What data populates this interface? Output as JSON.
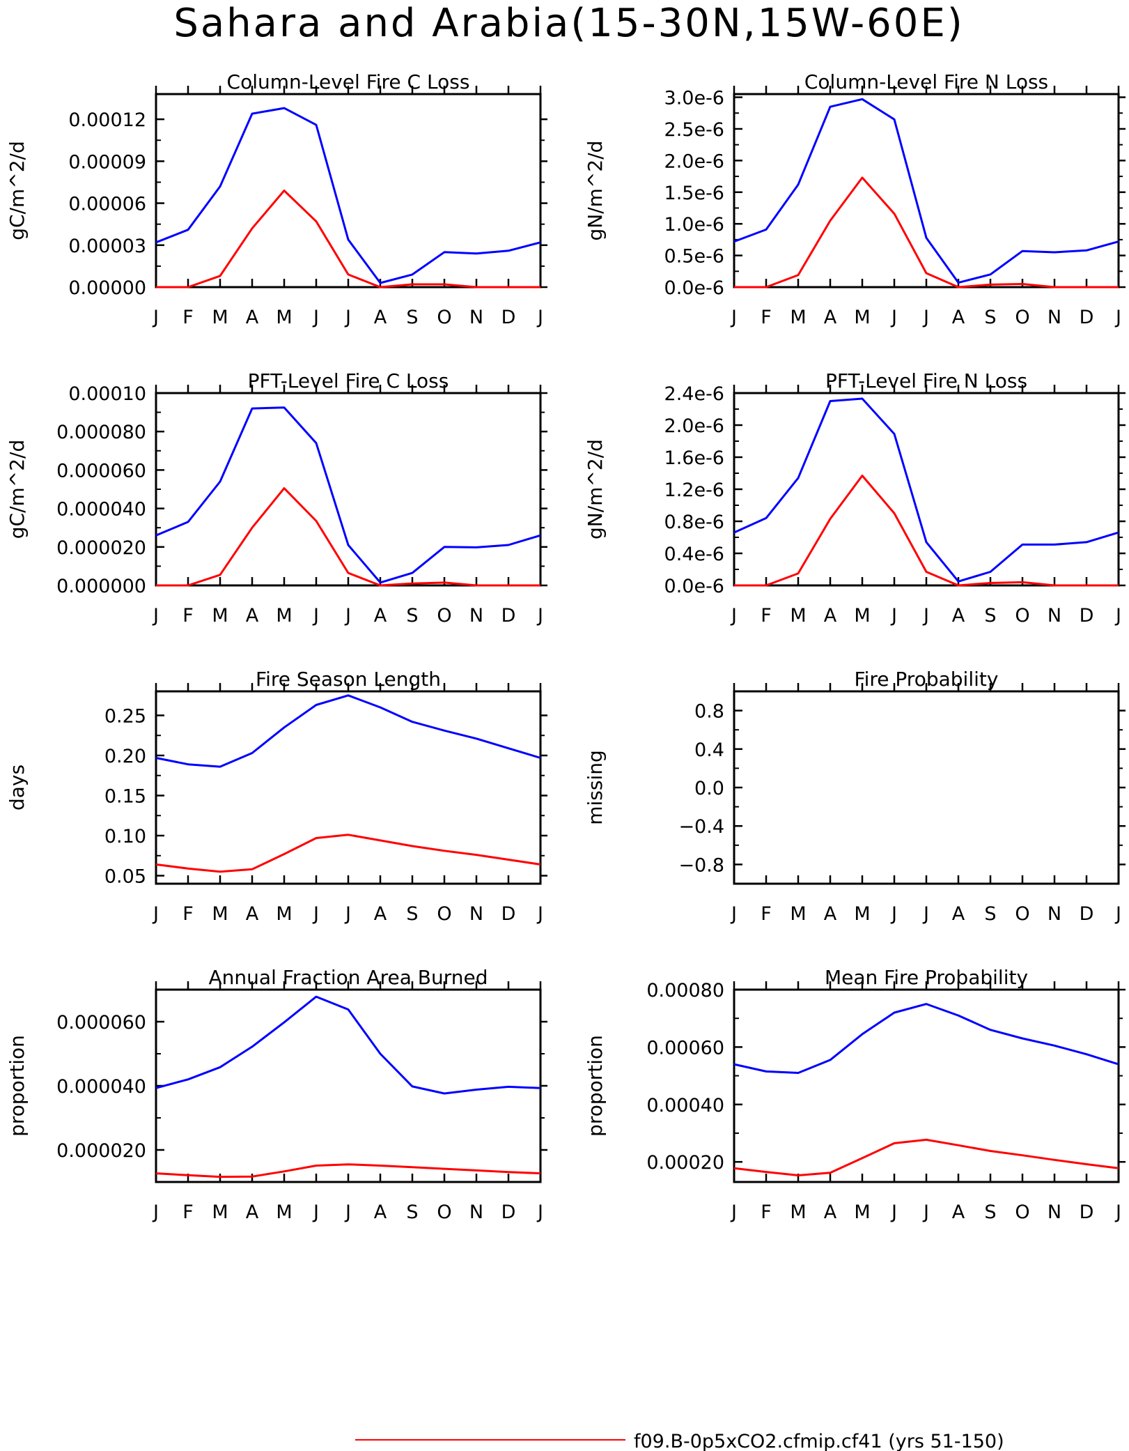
{
  "page_title": "Sahara and Arabia(15-30N,15W-60E)",
  "colors": {
    "series_red": "#ff0000",
    "series_blue": "#0000ff",
    "axis": "#000000"
  },
  "legend": [
    {
      "label": "f09.B-0p5xCO2.cfmip.cf41 (yrs 51-150)",
      "color": "#ff0000"
    }
  ],
  "chart_data": [
    {
      "type": "line",
      "title": "Column-Level Fire C Loss",
      "xlabel": "",
      "ylabel": "gC/m^2/d",
      "x_tick_labels": [
        "J",
        "F",
        "M",
        "A",
        "M",
        "J",
        "J",
        "A",
        "S",
        "O",
        "N",
        "D",
        "J"
      ],
      "y_ticks": [
        0,
        3e-05,
        6e-05,
        9e-05,
        0.00012
      ],
      "y_tick_labels": [
        "0.00000",
        "0.00003",
        "0.00006",
        "0.00009",
        "0.00012"
      ],
      "ylim": [
        0,
        0.000138
      ],
      "series": [
        {
          "color": "#0000ff",
          "values": [
            3.2e-05,
            4.1e-05,
            7.2e-05,
            0.000124,
            0.000128,
            0.000116,
            3.4e-05,
            3e-06,
            9e-06,
            2.5e-05,
            2.4e-05,
            2.6e-05,
            3.2e-05
          ]
        },
        {
          "color": "#ff0000",
          "values": [
            0,
            0,
            8e-06,
            4.2e-05,
            6.9e-05,
            4.7e-05,
            9e-06,
            0,
            2e-06,
            2e-06,
            0,
            0,
            0
          ]
        }
      ]
    },
    {
      "type": "line",
      "title": "Column-Level Fire N Loss",
      "xlabel": "",
      "ylabel": "gN/m^2/d",
      "x_tick_labels": [
        "J",
        "F",
        "M",
        "A",
        "M",
        "J",
        "J",
        "A",
        "S",
        "O",
        "N",
        "D",
        "J"
      ],
      "y_ticks": [
        0,
        5e-07,
        1e-06,
        1.5e-06,
        2e-06,
        2.5e-06,
        3e-06
      ],
      "y_tick_labels": [
        "0.0e-6",
        "0.5e-6",
        "1.0e-6",
        "1.5e-6",
        "2.0e-6",
        "2.5e-6",
        "3.0e-6"
      ],
      "ylim": [
        0,
        3.05e-06
      ],
      "series": [
        {
          "color": "#0000ff",
          "values": [
            7.2e-07,
            9.1e-07,
            1.62e-06,
            2.85e-06,
            2.97e-06,
            2.65e-06,
            7.8e-07,
            7e-08,
            2e-07,
            5.7e-07,
            5.5e-07,
            5.8e-07,
            7.2e-07
          ]
        },
        {
          "color": "#ff0000",
          "values": [
            0,
            0,
            1.9e-07,
            1.05e-06,
            1.73e-06,
            1.16e-06,
            2.2e-07,
            0,
            4e-08,
            5e-08,
            0,
            0,
            0
          ]
        }
      ]
    },
    {
      "type": "line",
      "title": "PFT-Level Fire C Loss",
      "xlabel": "",
      "ylabel": "gC/m^2/d",
      "x_tick_labels": [
        "J",
        "F",
        "M",
        "A",
        "M",
        "J",
        "J",
        "A",
        "S",
        "O",
        "N",
        "D",
        "J"
      ],
      "y_ticks": [
        0,
        2e-05,
        4e-05,
        6e-05,
        8e-05,
        0.0001
      ],
      "y_tick_labels": [
        "0.000000",
        "0.000020",
        "0.000040",
        "0.000060",
        "0.000080",
        "0.00010"
      ],
      "ylim": [
        0,
        0.0001
      ],
      "series": [
        {
          "color": "#0000ff",
          "values": [
            2.6e-05,
            3.3e-05,
            5.4e-05,
            9.2e-05,
            9.25e-05,
            7.4e-05,
            2.1e-05,
            1.5e-06,
            6.5e-06,
            2e-05,
            1.98e-05,
            2.1e-05,
            2.6e-05
          ]
        },
        {
          "color": "#ff0000",
          "values": [
            0,
            0,
            5.5e-06,
            3e-05,
            5.05e-05,
            3.35e-05,
            6.5e-06,
            0,
            1e-06,
            1.5e-06,
            0,
            0,
            0
          ]
        }
      ]
    },
    {
      "type": "line",
      "title": "PFT-Level Fire N Loss",
      "xlabel": "",
      "ylabel": "gN/m^2/d",
      "x_tick_labels": [
        "J",
        "F",
        "M",
        "A",
        "M",
        "J",
        "J",
        "A",
        "S",
        "O",
        "N",
        "D",
        "J"
      ],
      "y_ticks": [
        0,
        4e-07,
        8e-07,
        1.2e-06,
        1.6e-06,
        2e-06,
        2.4e-06
      ],
      "y_tick_labels": [
        "0.0e-6",
        "0.4e-6",
        "0.8e-6",
        "1.2e-6",
        "1.6e-6",
        "2.0e-6",
        "2.4e-6"
      ],
      "ylim": [
        0,
        2.4e-06
      ],
      "series": [
        {
          "color": "#0000ff",
          "values": [
            6.6e-07,
            8.4e-07,
            1.34e-06,
            2.3e-06,
            2.33e-06,
            1.89e-06,
            5.4e-07,
            5e-08,
            1.7e-07,
            5.1e-07,
            5.1e-07,
            5.4e-07,
            6.6e-07
          ]
        },
        {
          "color": "#ff0000",
          "values": [
            0,
            0,
            1.5e-07,
            8.3e-07,
            1.37e-06,
            9e-07,
            1.7e-07,
            0,
            3e-08,
            4e-08,
            0,
            0,
            0
          ]
        }
      ]
    },
    {
      "type": "line",
      "title": "Fire Season Length",
      "xlabel": "",
      "ylabel": "days",
      "x_tick_labels": [
        "J",
        "F",
        "M",
        "A",
        "M",
        "J",
        "J",
        "A",
        "S",
        "O",
        "N",
        "D",
        "J"
      ],
      "y_ticks": [
        0.05,
        0.1,
        0.15,
        0.2,
        0.25
      ],
      "y_tick_labels": [
        "0.05",
        "0.10",
        "0.15",
        "0.20",
        "0.25"
      ],
      "ylim": [
        0.04,
        0.28
      ],
      "series": [
        {
          "color": "#0000ff",
          "values": [
            0.197,
            0.189,
            0.186,
            0.203,
            0.235,
            0.263,
            0.275,
            0.26,
            0.242,
            0.231,
            0.221,
            0.209,
            0.197
          ]
        },
        {
          "color": "#ff0000",
          "values": [
            0.064,
            0.059,
            0.055,
            0.058,
            0.077,
            0.097,
            0.101,
            0.094,
            0.087,
            0.081,
            0.076,
            0.07,
            0.064
          ]
        }
      ]
    },
    {
      "type": "line",
      "title": "Fire Probability",
      "xlabel": "",
      "ylabel": "missing",
      "x_tick_labels": [
        "J",
        "F",
        "M",
        "A",
        "M",
        "J",
        "J",
        "A",
        "S",
        "O",
        "N",
        "D",
        "J"
      ],
      "y_ticks": [
        -0.8,
        -0.4,
        0,
        0.4,
        0.8
      ],
      "y_tick_labels": [
        "−0.8",
        "−0.4",
        "0.0",
        "0.4",
        "0.8"
      ],
      "ylim": [
        -1,
        1
      ],
      "series": []
    },
    {
      "type": "line",
      "title": "Annual Fraction Area Burned",
      "xlabel": "",
      "ylabel": "proportion",
      "x_tick_labels": [
        "J",
        "F",
        "M",
        "A",
        "M",
        "J",
        "J",
        "A",
        "S",
        "O",
        "N",
        "D",
        "J"
      ],
      "y_ticks": [
        2e-05,
        4e-05,
        6e-05
      ],
      "y_tick_labels": [
        "0.000020",
        "0.000040",
        "0.000060"
      ],
      "ylim": [
        1e-05,
        7e-05
      ],
      "series": [
        {
          "color": "#0000ff",
          "values": [
            3.93e-05,
            4.2e-05,
            4.58e-05,
            5.22e-05,
            5.98e-05,
            6.78e-05,
            6.38e-05,
            5e-05,
            3.98e-05,
            3.76e-05,
            3.88e-05,
            3.97e-05,
            3.93e-05
          ]
        },
        {
          "color": "#ff0000",
          "values": [
            1.27e-05,
            1.21e-05,
            1.16e-05,
            1.17e-05,
            1.33e-05,
            1.51e-05,
            1.55e-05,
            1.51e-05,
            1.46e-05,
            1.41e-05,
            1.36e-05,
            1.31e-05,
            1.27e-05
          ]
        }
      ]
    },
    {
      "type": "line",
      "title": "Mean Fire Probability",
      "xlabel": "",
      "ylabel": "proportion",
      "x_tick_labels": [
        "J",
        "F",
        "M",
        "A",
        "M",
        "J",
        "J",
        "A",
        "S",
        "O",
        "N",
        "D",
        "J"
      ],
      "y_ticks": [
        0.0002,
        0.0004,
        0.0006,
        0.0008
      ],
      "y_tick_labels": [
        "0.00020",
        "0.00040",
        "0.00060",
        "0.00080"
      ],
      "ylim": [
        0.00013,
        0.0008
      ],
      "series": [
        {
          "color": "#0000ff",
          "values": [
            0.00054,
            0.000515,
            0.00051,
            0.000555,
            0.000645,
            0.00072,
            0.00075,
            0.00071,
            0.00066,
            0.00063,
            0.000605,
            0.000575,
            0.00054
          ]
        },
        {
          "color": "#ff0000",
          "values": [
            0.000178,
            0.000165,
            0.000153,
            0.000162,
            0.000213,
            0.000265,
            0.000277,
            0.000258,
            0.000238,
            0.000223,
            0.000207,
            0.000192,
            0.000178
          ]
        }
      ]
    }
  ]
}
